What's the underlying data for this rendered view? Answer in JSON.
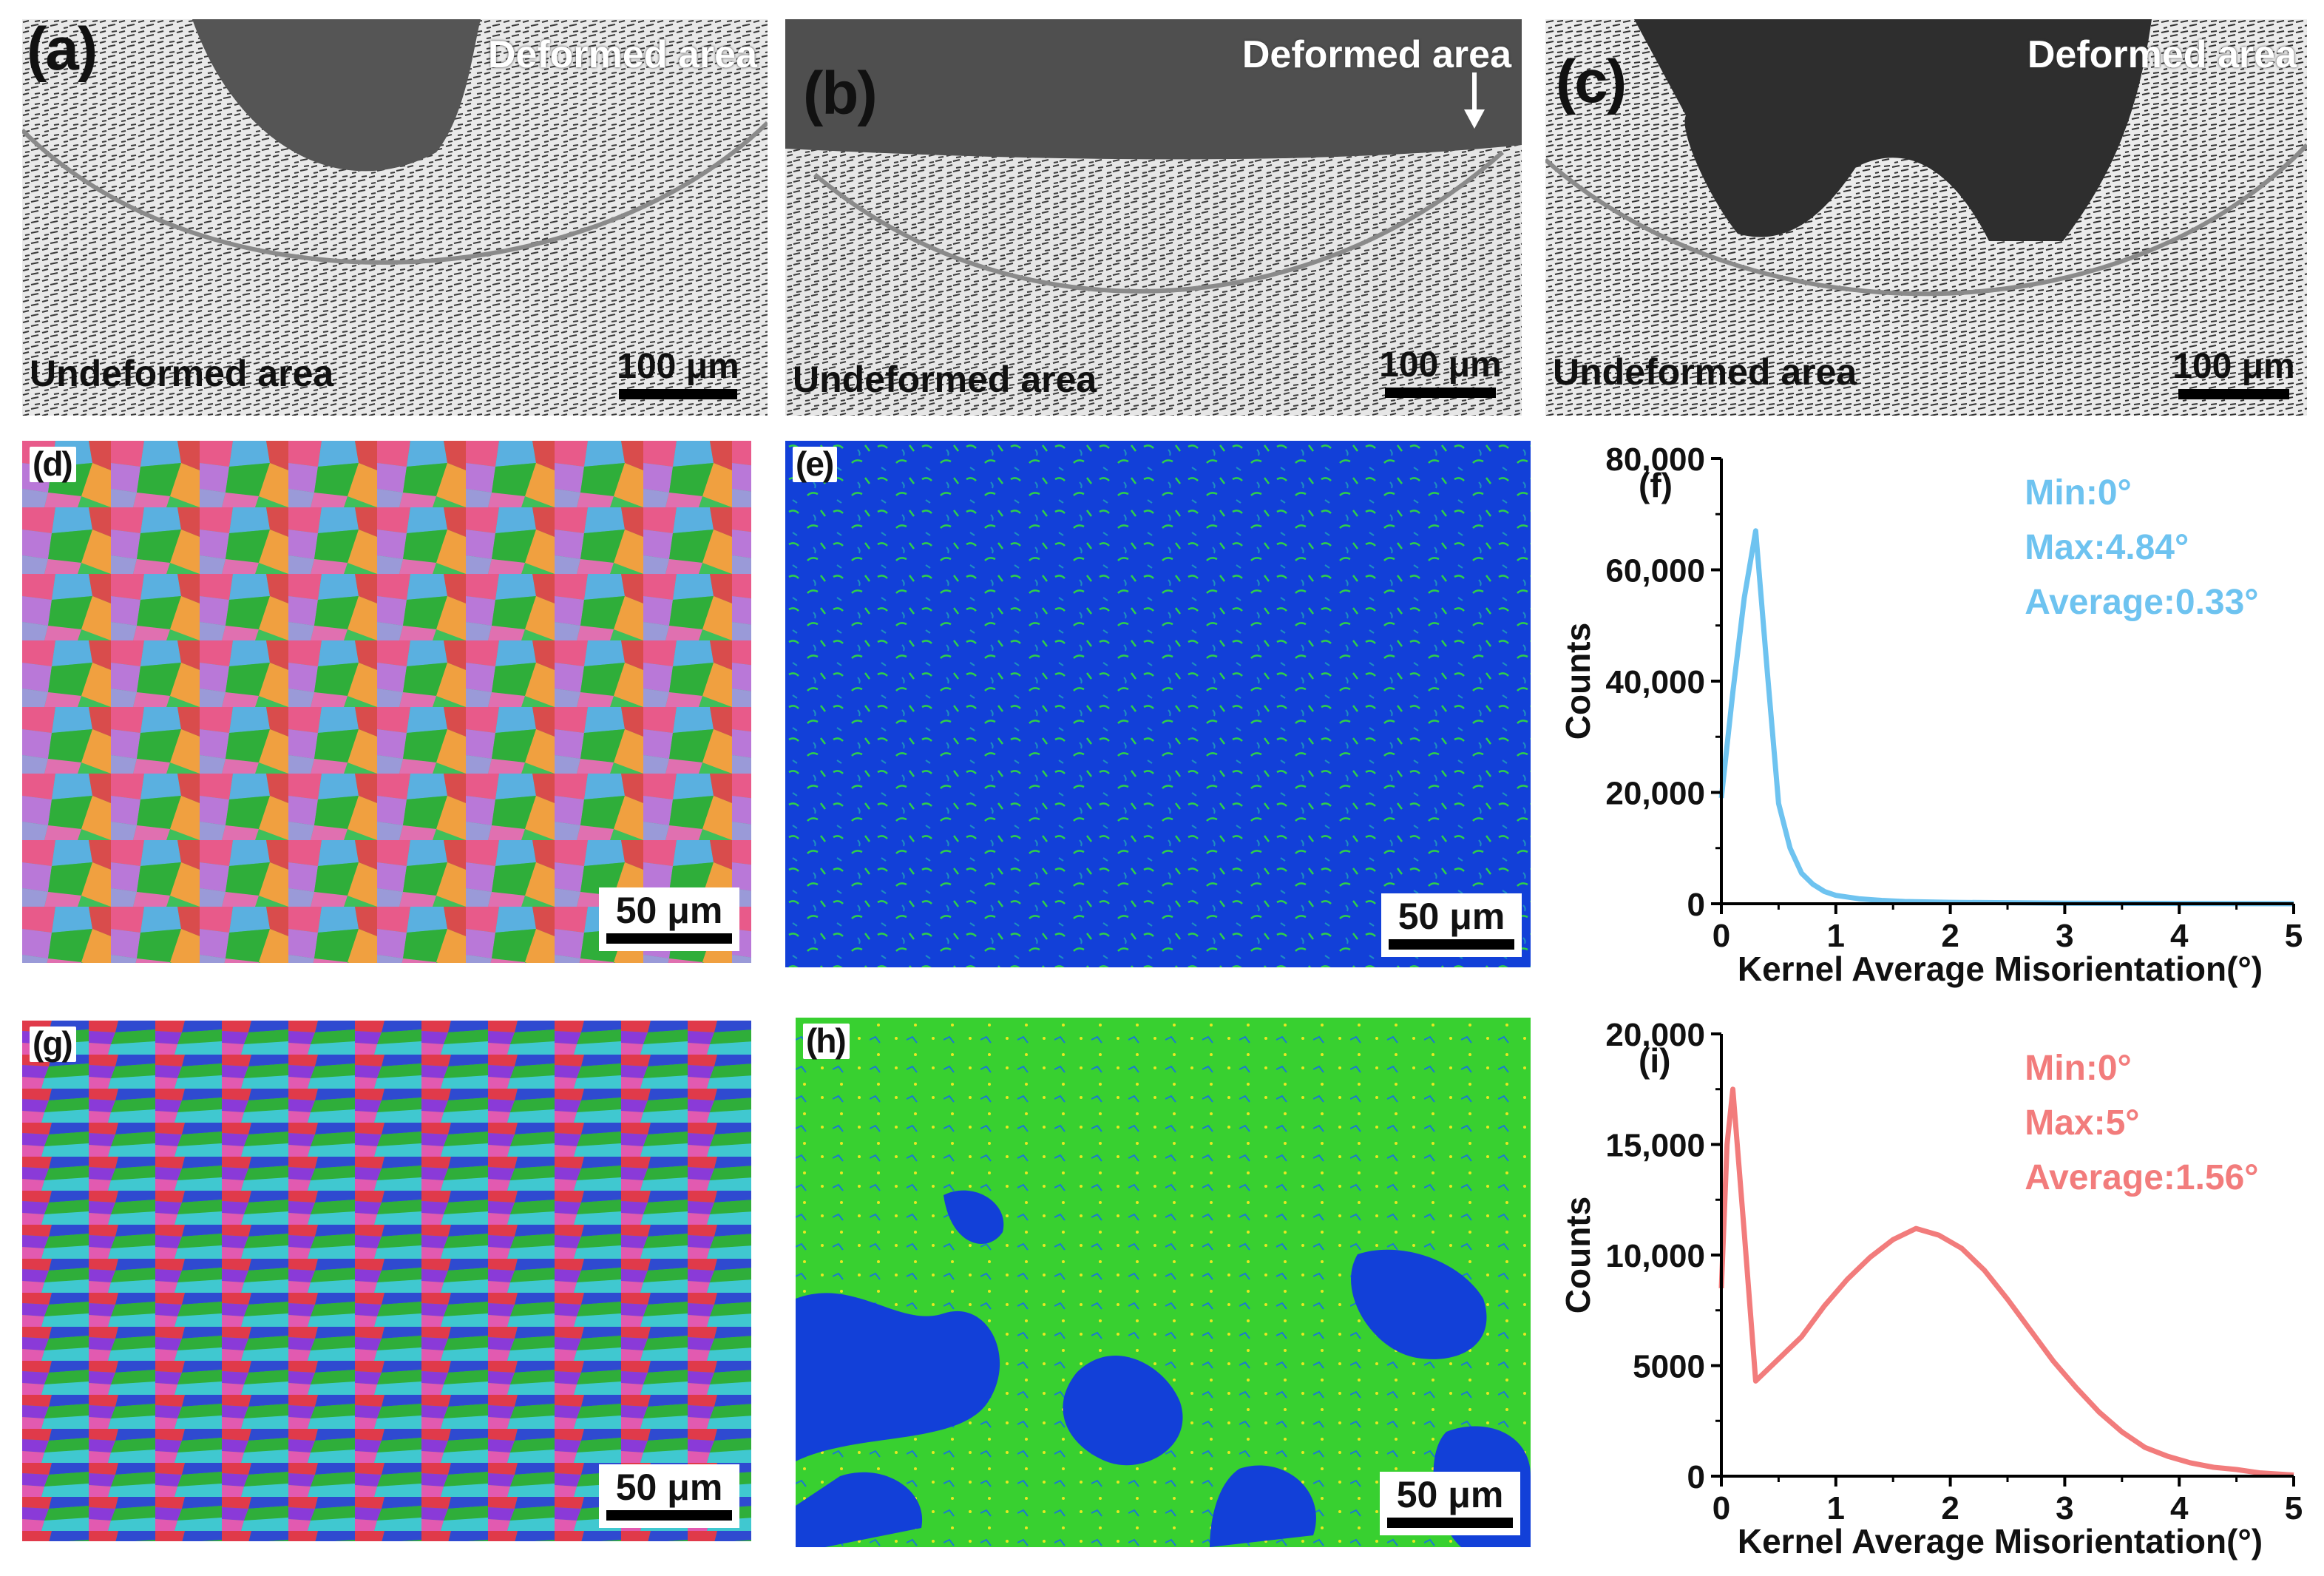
{
  "micrographs": [
    {
      "label": "(a)",
      "top_text": "Deformed area",
      "bottom_text": "Undeformed area",
      "scale": "100 μm"
    },
    {
      "label": "(b)",
      "top_text": "Deformed area",
      "bottom_text": "Undeformed area",
      "scale": "100 μm"
    },
    {
      "label": "(c)",
      "top_text": "Deformed area",
      "bottom_text": "Undeformed area",
      "scale": "100 μm"
    }
  ],
  "ebsd_maps": [
    {
      "label": "(d)",
      "scale": "50 μm"
    },
    {
      "label": "(e)",
      "scale": "50 μm"
    },
    {
      "label": "(g)",
      "scale": "50 μm"
    },
    {
      "label": "(h)",
      "scale": "50 μm"
    }
  ],
  "chart_data": [
    {
      "type": "line",
      "panel_label": "(f)",
      "xlabel": "Kernel Average Misorientation(°)",
      "ylabel": "Counts",
      "xlim": [
        0,
        5
      ],
      "ylim": [
        0,
        80000
      ],
      "xticks": [
        "0",
        "1",
        "2",
        "3",
        "4",
        "5"
      ],
      "yticks": [
        "0",
        "20,000",
        "40,000",
        "60,000",
        "80,000"
      ],
      "annotations": [
        "Min:0°",
        "Max:4.84°",
        "Average:0.33°"
      ],
      "color": "#6ec3f0",
      "x": [
        0,
        0.1,
        0.2,
        0.3,
        0.4,
        0.5,
        0.6,
        0.7,
        0.8,
        0.9,
        1.0,
        1.2,
        1.4,
        1.6,
        2.0,
        3.0,
        4.0,
        5.0
      ],
      "y": [
        19000,
        38000,
        55000,
        67000,
        42000,
        18000,
        10000,
        5500,
        3500,
        2200,
        1500,
        900,
        600,
        400,
        250,
        100,
        50,
        0
      ]
    },
    {
      "type": "line",
      "panel_label": "(i)",
      "xlabel": "Kernel Average Misorientation(°)",
      "ylabel": "Counts",
      "xlim": [
        0,
        5
      ],
      "ylim": [
        0,
        20000
      ],
      "xticks": [
        "0",
        "1",
        "2",
        "3",
        "4",
        "5"
      ],
      "yticks": [
        "0",
        "5000",
        "10,000",
        "15,000",
        "20,000"
      ],
      "annotations": [
        "Min:0°",
        "Max:5°",
        "Average:1.56°"
      ],
      "color": "#f27c7c",
      "x": [
        0,
        0.05,
        0.1,
        0.2,
        0.3,
        0.5,
        0.7,
        0.9,
        1.1,
        1.3,
        1.5,
        1.7,
        1.9,
        2.1,
        2.3,
        2.5,
        2.7,
        2.9,
        3.1,
        3.3,
        3.5,
        3.7,
        3.9,
        4.1,
        4.3,
        4.5,
        4.7,
        5.0
      ],
      "y": [
        8500,
        15000,
        17500,
        11000,
        4300,
        5300,
        6300,
        7700,
        8900,
        9900,
        10700,
        11200,
        10900,
        10300,
        9300,
        8000,
        6600,
        5200,
        4000,
        2900,
        2000,
        1300,
        900,
        600,
        400,
        300,
        150,
        50
      ]
    }
  ]
}
